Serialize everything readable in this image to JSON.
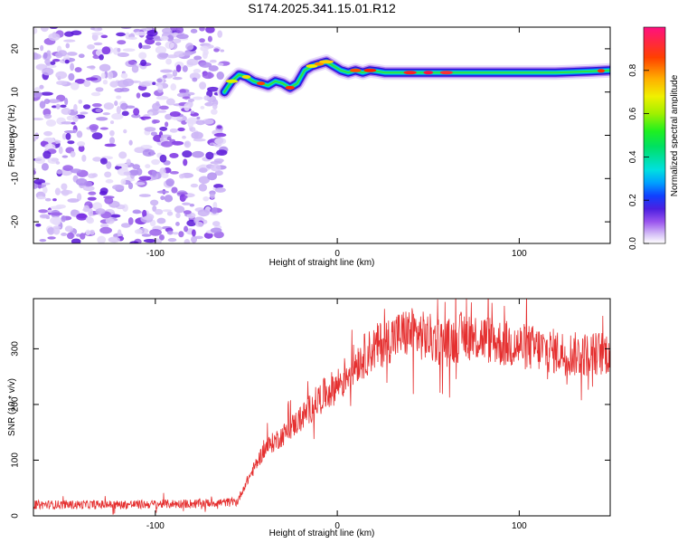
{
  "title": "S174.2025.341.15.01.R12",
  "chart_data": [
    {
      "type": "heatmap",
      "name": "spectrogram",
      "xlabel": "Height of straight line (km)",
      "ylabel": "Frequency (Hz)",
      "xlim": [
        -167,
        150
      ],
      "ylim": [
        -25,
        25
      ],
      "xticks": [
        -100,
        0,
        100
      ],
      "yticks": [
        -20,
        -10,
        0,
        10,
        20
      ],
      "noise_region_x": [
        -167,
        -62
      ],
      "ridge": {
        "x": [
          -62,
          -58,
          -54,
          -50,
          -46,
          -42,
          -38,
          -34,
          -30,
          -26,
          -22,
          -18,
          -14,
          -10,
          -6,
          -2,
          2,
          6,
          10,
          14,
          18,
          22,
          26,
          30,
          40,
          60,
          80,
          100,
          120,
          140,
          150
        ],
        "y": [
          10,
          12.5,
          14,
          13.5,
          12.5,
          12,
          11.5,
          12.5,
          12,
          11,
          12,
          15,
          16,
          16.5,
          17,
          16,
          15,
          14.5,
          15,
          14.5,
          15,
          14.8,
          14.5,
          14.5,
          14.5,
          14.5,
          14.5,
          14.5,
          14.5,
          14.8,
          15
        ]
      },
      "colorbar": {
        "label": "Normalized spectral amplitude",
        "range": [
          0,
          1
        ],
        "ticks": [
          0.0,
          0.2,
          0.4,
          0.6,
          0.8
        ]
      }
    },
    {
      "type": "line",
      "name": "snr",
      "xlabel": "Height of straight line (km)",
      "ylabel": "SNR (10 * v/v)",
      "xlim": [
        -167,
        150
      ],
      "ylim": [
        0,
        390
      ],
      "xticks": [
        -100,
        0,
        100
      ],
      "yticks": [
        0,
        100,
        200,
        300
      ],
      "color": "#e53030",
      "series": [
        {
          "name": "SNR",
          "x": [
            -167,
            -120,
            -80,
            -55,
            -50,
            -45,
            -40,
            -30,
            -20,
            -10,
            0,
            5,
            10,
            20,
            30,
            40,
            50,
            60,
            70,
            80,
            90,
            100,
            110,
            120,
            130,
            140,
            150
          ],
          "y": [
            20,
            20,
            22,
            25,
            60,
            90,
            120,
            145,
            175,
            210,
            235,
            255,
            275,
            300,
            320,
            330,
            320,
            310,
            325,
            320,
            310,
            305,
            300,
            295,
            290,
            290,
            295
          ]
        }
      ]
    }
  ]
}
